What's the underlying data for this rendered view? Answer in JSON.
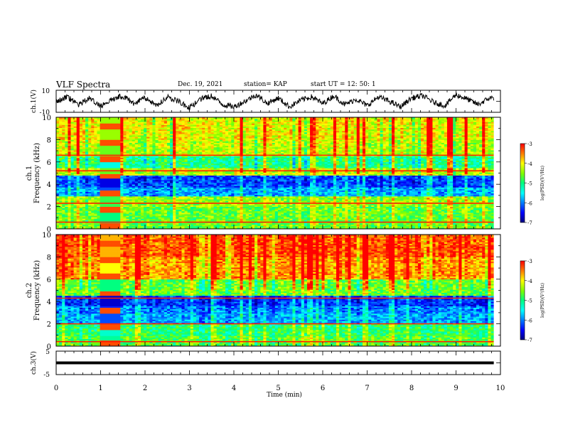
{
  "header": {
    "title": "VLF Spectra",
    "date": "Dec. 19, 2021",
    "station": "station= KAP",
    "start": "start  UT =   12: 50: 1"
  },
  "chart_data": [
    {
      "type": "line",
      "panel": "ch1_waveform",
      "ylabel": "ch.1(V)",
      "y_tick_labels": [
        "10",
        "-10"
      ],
      "ylim": [
        -10,
        10
      ],
      "x_range_min": [
        0,
        9.85
      ],
      "series": [
        {
          "x": [
            0,
            0.25,
            0.5,
            0.75,
            1.0,
            1.25,
            1.5,
            1.75,
            2.0,
            2.25,
            2.5,
            2.75,
            3.0,
            3.25,
            3.5,
            3.75,
            4.0,
            4.25,
            4.5,
            4.75,
            5.0,
            5.25,
            5.5,
            5.75,
            6.0,
            6.25,
            6.5,
            6.75,
            7.0,
            7.25,
            7.5,
            7.75,
            8.0,
            8.25,
            8.5,
            8.75,
            9.0,
            9.25,
            9.5,
            9.75
          ],
          "y": [
            0,
            4,
            -3,
            3,
            -5,
            2,
            5,
            -2,
            3,
            -4,
            4,
            0,
            -6,
            2,
            5,
            -3,
            -5,
            0,
            6,
            -2,
            3,
            -5,
            1,
            4,
            -2,
            5,
            -3,
            2,
            -4,
            4,
            0,
            -5,
            3,
            5,
            -1,
            -4,
            6,
            2,
            -3,
            3
          ]
        }
      ],
      "line_color": "#000000"
    },
    {
      "type": "heatmap",
      "panel": "ch1_spectrogram",
      "ylabel": "ch.1\nFrequency (kHz)",
      "y_tick_labels": [
        "0",
        "2",
        "4",
        "6",
        "8",
        "10"
      ],
      "ylim": [
        0,
        10
      ],
      "colorbar": {
        "label": "log(PSD)(V²/Hz)",
        "tick_labels": [
          "-3",
          "-4",
          "-5",
          "-6",
          "-7"
        ],
        "range": [
          -7,
          -3
        ]
      },
      "dominant_level_by_band": [
        {
          "band_khz": [
            0,
            1
          ],
          "log_psd": -4.6
        },
        {
          "band_khz": [
            1,
            2
          ],
          "log_psd": -4.6
        },
        {
          "band_khz": [
            2,
            3
          ],
          "log_psd": -4.4
        },
        {
          "band_khz": [
            3,
            3.8
          ],
          "log_psd": -5.8
        },
        {
          "band_khz": [
            3.8,
            4.8
          ],
          "log_psd": -6.2
        },
        {
          "band_khz": [
            4.8,
            5.5
          ],
          "log_psd": -4.2
        },
        {
          "band_khz": [
            5.5,
            6.5
          ],
          "log_psd": -5.0
        },
        {
          "band_khz": [
            6.5,
            8
          ],
          "log_psd": -4.2
        },
        {
          "band_khz": [
            8,
            10
          ],
          "log_psd": -4.0
        }
      ],
      "persistent_lines_khz": [
        0.6,
        2.3,
        5.2,
        6.6
      ],
      "burst_interval_min": [
        1.0,
        1.45
      ]
    },
    {
      "type": "heatmap",
      "panel": "ch2_spectrogram",
      "ylabel": "ch.2\nFrequency (kHz)",
      "y_tick_labels": [
        "0",
        "2",
        "4",
        "6",
        "8",
        "10"
      ],
      "ylim": [
        0,
        10
      ],
      "colorbar": {
        "label": "log(PSD)(V²/Hz)",
        "tick_labels": [
          "-3",
          "-4",
          "-5",
          "-6",
          "-7"
        ],
        "range": [
          -7,
          -3
        ]
      },
      "dominant_level_by_band": [
        {
          "band_khz": [
            0,
            1
          ],
          "log_psd": -4.7
        },
        {
          "band_khz": [
            1,
            2
          ],
          "log_psd": -4.9
        },
        {
          "band_khz": [
            2,
            3
          ],
          "log_psd": -5.8
        },
        {
          "band_khz": [
            3,
            3.6
          ],
          "log_psd": -6.0
        },
        {
          "band_khz": [
            3.6,
            4.5
          ],
          "log_psd": -6.3
        },
        {
          "band_khz": [
            4.5,
            6
          ],
          "log_psd": -4.6
        },
        {
          "band_khz": [
            6,
            8
          ],
          "log_psd": -3.6
        },
        {
          "band_khz": [
            8,
            10
          ],
          "log_psd": -3.3
        }
      ],
      "persistent_lines_khz": [
        0.4,
        2.0,
        4.3
      ],
      "burst_interval_min": [
        1.0,
        1.45
      ]
    },
    {
      "type": "line",
      "panel": "ch3_waveform",
      "ylabel": "ch.3(V)",
      "y_tick_labels": [
        "5",
        "0",
        "-5"
      ],
      "ylim": [
        -5,
        5
      ],
      "band_y": [
        -0.6,
        0.6
      ],
      "line_color": "#000000"
    }
  ],
  "x_axis": {
    "label": "Time (min)",
    "tick_labels": [
      "0",
      "1",
      "2",
      "3",
      "4",
      "5",
      "6",
      "7",
      "8",
      "9",
      "10"
    ],
    "range": [
      0,
      10
    ],
    "data_end": 9.85
  },
  "colormap": [
    "#00007f",
    "#0000ff",
    "#0080ff",
    "#00ffff",
    "#00ff80",
    "#80ff00",
    "#ffff00",
    "#ff8000",
    "#ff0000"
  ]
}
